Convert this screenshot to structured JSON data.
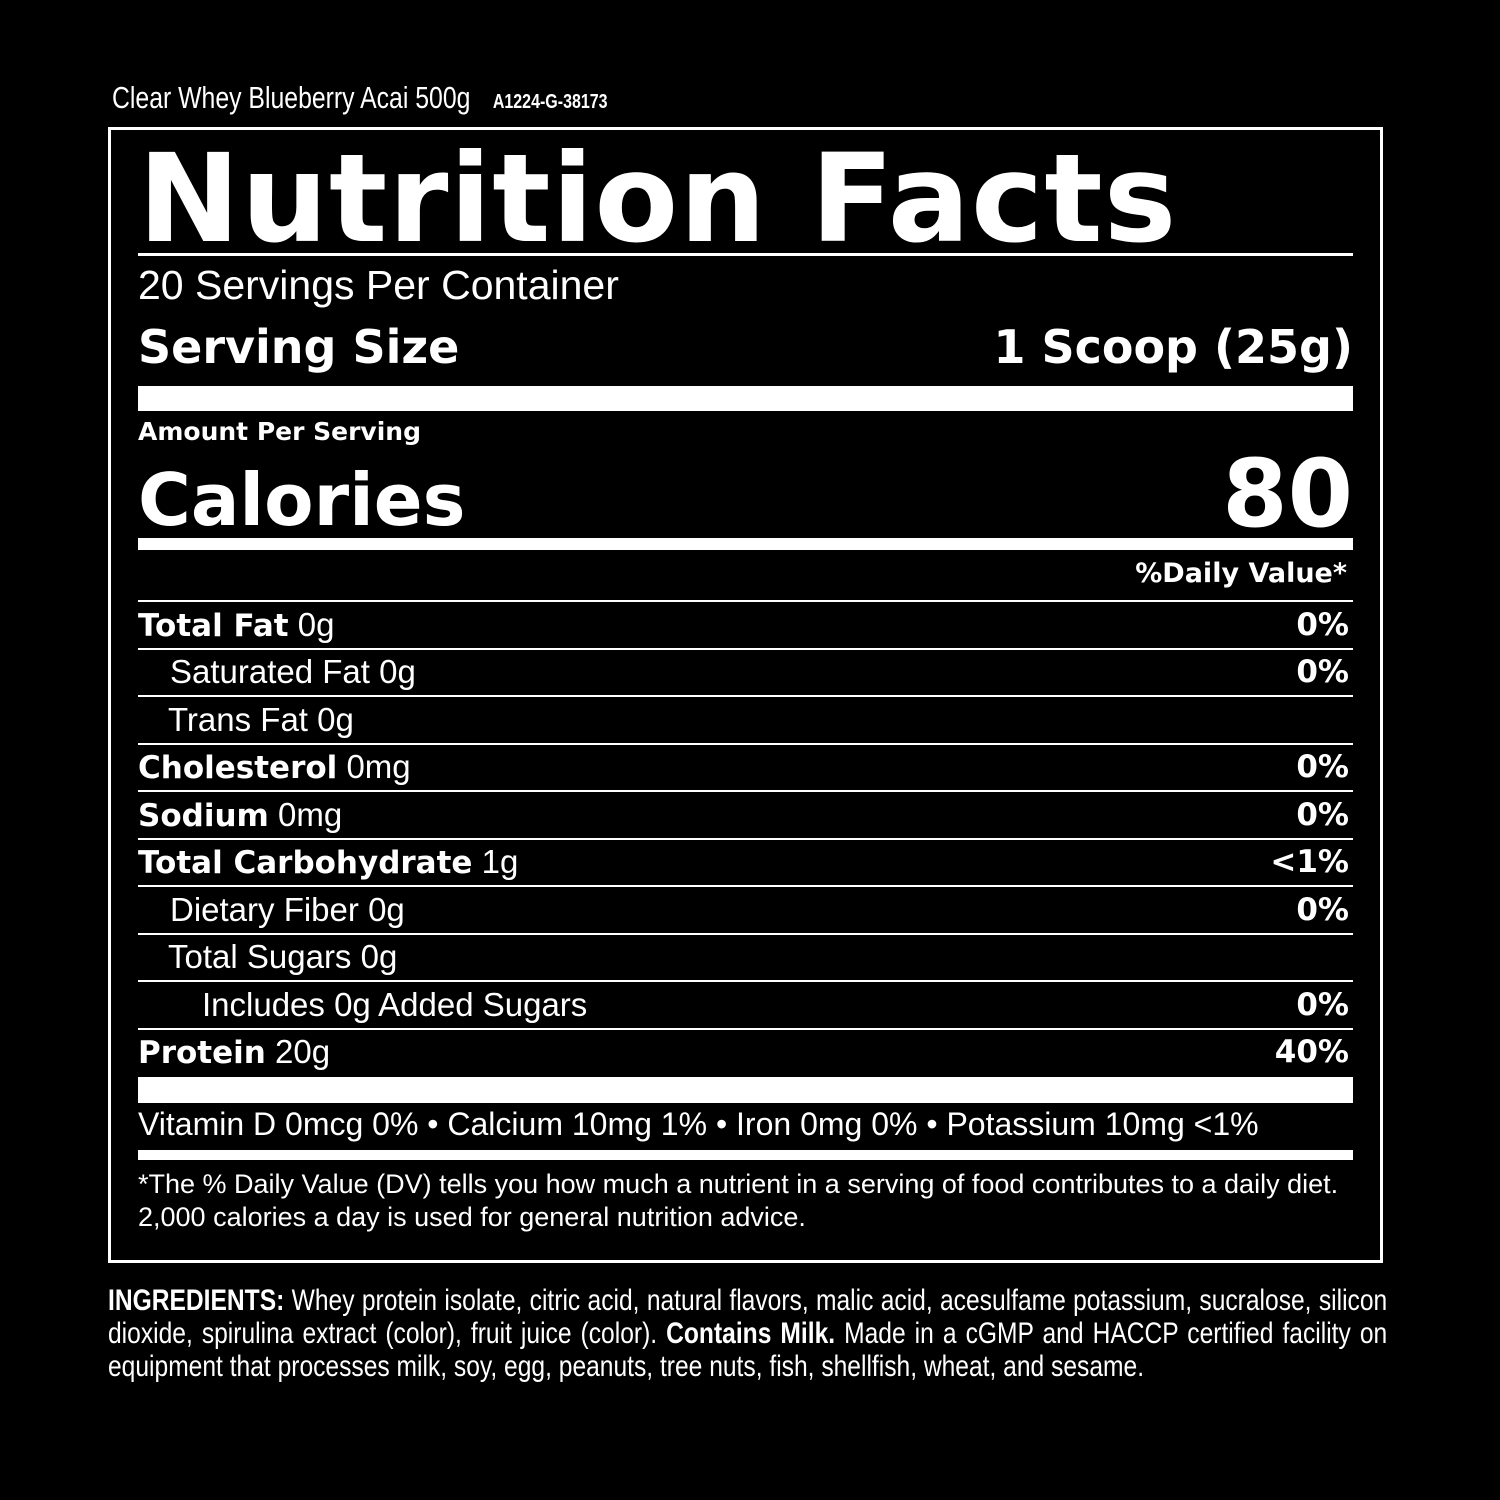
{
  "product": {
    "name": "Clear Whey Blueberry Acai 500g",
    "code": "A1224-G-38173"
  },
  "label": {
    "title": "Nutrition Facts",
    "servings": "20 Servings Per Container",
    "serving_size_label": "Serving Size",
    "serving_size_value": "1 Scoop (25g)",
    "amount_per_serving": "Amount Per Serving",
    "calories_label": "Calories",
    "calories_value": "80",
    "dv_header": "%Daily Value*",
    "nutrients": [
      {
        "name": "Total Fat",
        "amount": "0g",
        "dv": "0%"
      },
      {
        "name": "Saturated Fat",
        "amount": "0g",
        "dv": "0%"
      },
      {
        "name": "Trans Fat",
        "amount": "0g",
        "dv": ""
      },
      {
        "name": "Cholesterol",
        "amount": "0mg",
        "dv": "0%"
      },
      {
        "name": "Sodium",
        "amount": "0mg",
        "dv": "0%"
      },
      {
        "name": "Total Carbohydrate",
        "amount": "1g",
        "dv": "<1%"
      },
      {
        "name": "Dietary Fiber",
        "amount": "0g",
        "dv": "0%"
      },
      {
        "name": "Total Sugars",
        "amount": "0g",
        "dv": ""
      },
      {
        "name": "Includes 0g Added Sugars",
        "amount": "",
        "dv": "0%"
      },
      {
        "name": "Protein",
        "amount": "20g",
        "dv": "40%"
      }
    ],
    "vitamins": "Vitamin D 0mcg 0% • Calcium 10mg 1% • Iron 0mg 0% • Potassium 10mg <1%",
    "footnote": "*The % Daily Value (DV) tells you how much a nutrient in a serving of food contributes to a daily diet. 2,000 calories a day is used for general nutrition advice."
  },
  "ingredients": {
    "label": "INGREDIENTS:",
    "text1": " Whey protein isolate, citric acid, natural flavors, malic acid, acesulfame potassium, sucralose, silicon dioxide, spirulina extract (color), fruit juice (color). ",
    "contains": "Contains Milk.",
    "text2": " Made in a cGMP and HACCP certified facility on equipment that processes milk, soy, egg, peanuts, tree nuts, fish, shellfish, wheat, and sesame."
  }
}
